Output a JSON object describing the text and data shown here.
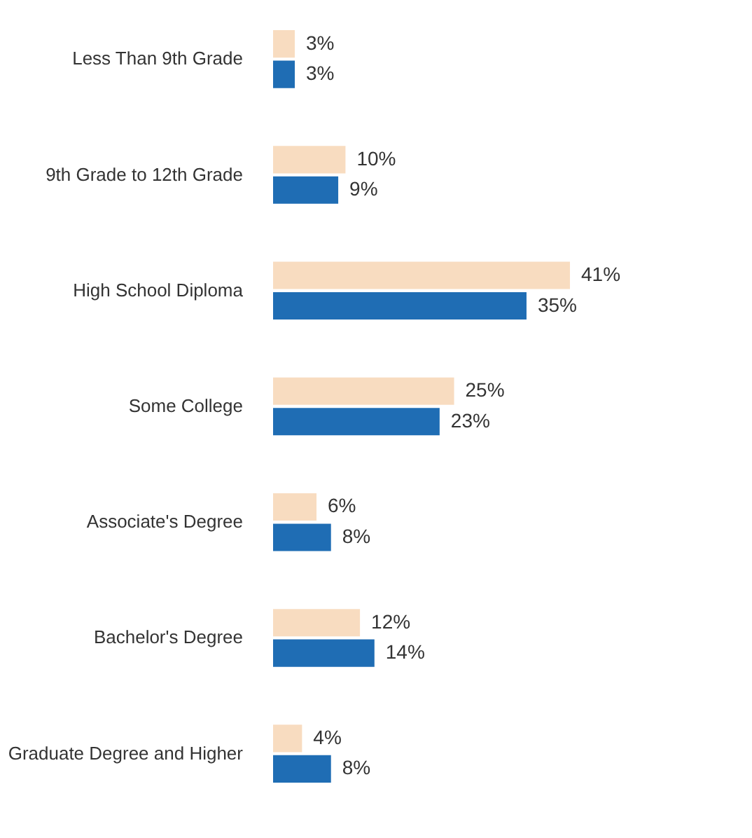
{
  "chart_data": {
    "type": "bar",
    "orientation": "horizontal",
    "categories": [
      "Less Than 9th Grade",
      "9th Grade to 12th Grade",
      "High School Diploma",
      "Some College",
      "Associate's Degree",
      "Bachelor's Degree",
      "Graduate Degree and Higher"
    ],
    "series": [
      {
        "color": "#f8dcc0",
        "values": [
          3,
          10,
          41,
          25,
          6,
          12,
          4
        ],
        "value_labels": [
          "3%",
          "10%",
          "41%",
          "25%",
          "6%",
          "12%",
          "4%"
        ]
      },
      {
        "color": "#1f6db4",
        "values": [
          3,
          9,
          35,
          23,
          8,
          14,
          8
        ],
        "value_labels": [
          "3%",
          "9%",
          "35%",
          "23%",
          "8%",
          "14%",
          "8%"
        ]
      }
    ]
  }
}
